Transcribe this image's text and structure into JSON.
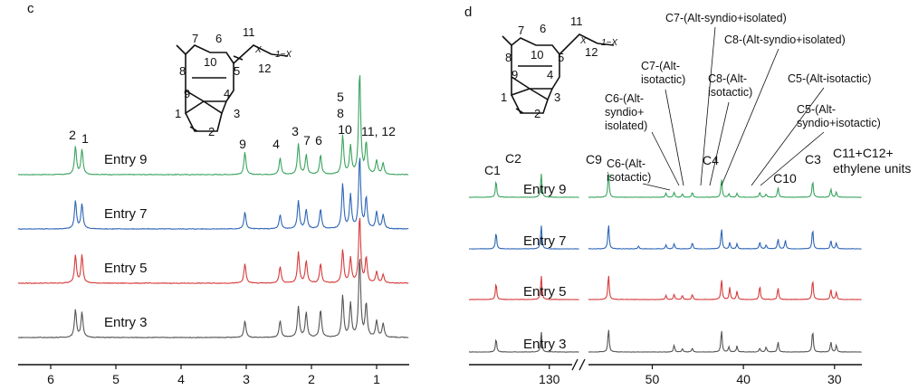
{
  "panel_c": {
    "letter": "c",
    "structure": {
      "labels": [
        "7",
        "6",
        "11",
        "1−X",
        "X",
        "12",
        "8",
        "10",
        "5",
        "9",
        "4",
        "1",
        "3",
        "2"
      ]
    },
    "peak_labels": [
      {
        "text": "2",
        "x": 5.62
      },
      {
        "text": "1",
        "x": 5.52
      },
      {
        "text": "9",
        "x": 3.02
      },
      {
        "text": "4",
        "x": 2.48
      },
      {
        "text": "3",
        "x": 2.2
      },
      {
        "text": "7",
        "x": 2.08
      },
      {
        "text": "6",
        "x": 1.86
      },
      {
        "text": "5",
        "x": 1.52
      },
      {
        "text": "8",
        "x": 1.52
      },
      {
        "text": "10",
        "x": 1.52
      },
      {
        "text": "11, 12",
        "x": 1.0
      }
    ],
    "axis": {
      "ticks": [
        "6",
        "5",
        "4",
        "3",
        "2",
        "1"
      ],
      "tick_values": [
        6,
        5,
        4,
        3,
        2,
        1
      ],
      "xlim": [
        6.5,
        0.5
      ]
    }
  },
  "panel_d": {
    "letter": "d",
    "structure": {
      "labels": [
        "7",
        "6",
        "11",
        "1−X",
        "X",
        "12",
        "8",
        "10",
        "5",
        "9",
        "4",
        "1",
        "3",
        "2"
      ]
    },
    "peak_labels": [
      {
        "text": "C1",
        "x": 135.3
      },
      {
        "text": "C2",
        "x": 130.8
      },
      {
        "text": "C9",
        "x": 54.8
      },
      {
        "text": "C4",
        "x": 42.4
      },
      {
        "text": "C10",
        "x": 37.0
      },
      {
        "text": "C3",
        "x": 32.4
      },
      {
        "text": "C11+C12+",
        "x": 29.6
      },
      {
        "text": "ethylene units",
        "x": 29.6
      }
    ],
    "annotations": [
      {
        "lines": [
          "C7-(Alt-syndio+isolated)"
        ]
      },
      {
        "lines": [
          "C8-(Alt-syndio+isolated)"
        ]
      },
      {
        "lines": [
          "C7-(Alt-",
          "isotactic)"
        ]
      },
      {
        "lines": [
          "C8-(Alt-",
          "isotactic)"
        ]
      },
      {
        "lines": [
          "C5-(Alt-isotactic)"
        ]
      },
      {
        "lines": [
          "C6-(Alt-",
          "syndio+",
          "isolated)"
        ]
      },
      {
        "lines": [
          "C5-(Alt-",
          "syndio+isotactic)"
        ]
      },
      {
        "lines": [
          "C6-(Alt-",
          "isotactic)"
        ]
      }
    ],
    "axis": {
      "ticks": [
        "130",
        "50",
        "40",
        "30"
      ],
      "tick_values": [
        130,
        50,
        40,
        30
      ],
      "xlim_left": [
        138,
        127
      ],
      "xlim_right": [
        57,
        27
      ]
    }
  },
  "chart_data": [
    {
      "type": "line",
      "panel": "c",
      "xlabel": "",
      "ylabel": "",
      "x_reversed": true,
      "xlim": [
        6.5,
        0.5
      ],
      "series": [
        {
          "name": "Entry 9",
          "color": "#3aa45f",
          "peaks": [
            [
              5.62,
              0.5
            ],
            [
              5.52,
              0.45
            ],
            [
              3.02,
              0.4
            ],
            [
              2.48,
              0.3
            ],
            [
              2.2,
              0.55
            ],
            [
              2.08,
              0.35
            ],
            [
              1.86,
              0.35
            ],
            [
              1.52,
              0.7
            ],
            [
              1.4,
              0.5
            ],
            [
              1.26,
              1.85
            ],
            [
              1.16,
              0.55
            ],
            [
              1.0,
              0.25
            ],
            [
              0.9,
              0.2
            ]
          ]
        },
        {
          "name": "Entry 7",
          "color": "#2e66b6",
          "peaks": [
            [
              5.62,
              0.5
            ],
            [
              5.52,
              0.45
            ],
            [
              3.02,
              0.3
            ],
            [
              2.48,
              0.25
            ],
            [
              2.2,
              0.5
            ],
            [
              2.08,
              0.35
            ],
            [
              1.86,
              0.35
            ],
            [
              1.52,
              0.8
            ],
            [
              1.4,
              0.6
            ],
            [
              1.26,
              1.3
            ],
            [
              1.16,
              0.55
            ],
            [
              1.0,
              0.3
            ],
            [
              0.9,
              0.25
            ]
          ]
        },
        {
          "name": "Entry 5",
          "color": "#d63b3b",
          "peaks": [
            [
              5.62,
              0.5
            ],
            [
              5.52,
              0.5
            ],
            [
              3.02,
              0.35
            ],
            [
              2.48,
              0.3
            ],
            [
              2.2,
              0.55
            ],
            [
              2.08,
              0.4
            ],
            [
              1.86,
              0.35
            ],
            [
              1.52,
              0.6
            ],
            [
              1.4,
              0.45
            ],
            [
              1.26,
              1.2
            ],
            [
              1.16,
              0.45
            ],
            [
              1.0,
              0.2
            ],
            [
              0.9,
              0.15
            ]
          ]
        },
        {
          "name": "Entry 3",
          "color": "#555555",
          "peaks": [
            [
              5.62,
              0.5
            ],
            [
              5.52,
              0.45
            ],
            [
              3.02,
              0.3
            ],
            [
              2.48,
              0.3
            ],
            [
              2.2,
              0.55
            ],
            [
              2.08,
              0.45
            ],
            [
              1.86,
              0.5
            ],
            [
              1.52,
              0.75
            ],
            [
              1.4,
              0.6
            ],
            [
              1.26,
              1.45
            ],
            [
              1.16,
              0.6
            ],
            [
              1.0,
              0.3
            ],
            [
              0.9,
              0.25
            ]
          ]
        }
      ]
    },
    {
      "type": "line",
      "panel": "d",
      "xlabel": "",
      "ylabel": "",
      "x_reversed": true,
      "axis_break": [
        127,
        57
      ],
      "series": [
        {
          "name": "Entry 9",
          "color": "#3aa45f",
          "peaks": [
            [
              135.3,
              0.5
            ],
            [
              130.8,
              0.7
            ],
            [
              54.8,
              0.75
            ],
            [
              48.5,
              0.12
            ],
            [
              47.6,
              0.15
            ],
            [
              46.7,
              0.1
            ],
            [
              45.6,
              0.15
            ],
            [
              42.4,
              0.55
            ],
            [
              41.6,
              0.1
            ],
            [
              40.7,
              0.12
            ],
            [
              38.2,
              0.15
            ],
            [
              37.5,
              0.1
            ],
            [
              36.2,
              0.3
            ],
            [
              32.4,
              0.5
            ],
            [
              30.4,
              0.25
            ],
            [
              29.8,
              0.15
            ]
          ]
        },
        {
          "name": "Entry 7",
          "color": "#2e66b6",
          "peaks": [
            [
              135.3,
              0.5
            ],
            [
              130.8,
              0.7
            ],
            [
              54.8,
              0.75
            ],
            [
              51.5,
              0.08
            ],
            [
              48.5,
              0.12
            ],
            [
              47.6,
              0.15
            ],
            [
              45.6,
              0.18
            ],
            [
              42.4,
              0.6
            ],
            [
              41.5,
              0.18
            ],
            [
              40.7,
              0.15
            ],
            [
              38.2,
              0.2
            ],
            [
              37.5,
              0.12
            ],
            [
              36.2,
              0.3
            ],
            [
              35.4,
              0.25
            ],
            [
              32.4,
              0.6
            ],
            [
              30.4,
              0.25
            ],
            [
              29.8,
              0.18
            ]
          ]
        },
        {
          "name": "Entry 5",
          "color": "#d63b3b",
          "peaks": [
            [
              135.3,
              0.5
            ],
            [
              130.8,
              0.7
            ],
            [
              54.8,
              0.75
            ],
            [
              48.5,
              0.12
            ],
            [
              47.6,
              0.15
            ],
            [
              46.7,
              0.12
            ],
            [
              45.6,
              0.15
            ],
            [
              42.4,
              0.6
            ],
            [
              41.5,
              0.35
            ],
            [
              40.7,
              0.25
            ],
            [
              38.2,
              0.4
            ],
            [
              36.2,
              0.35
            ],
            [
              32.4,
              0.6
            ],
            [
              30.4,
              0.3
            ],
            [
              29.8,
              0.22
            ]
          ]
        },
        {
          "name": "Entry 3",
          "color": "#555555",
          "peaks": [
            [
              135.3,
              0.4
            ],
            [
              130.8,
              0.6
            ],
            [
              54.8,
              0.7
            ],
            [
              47.6,
              0.2
            ],
            [
              46.7,
              0.1
            ],
            [
              45.6,
              0.12
            ],
            [
              42.4,
              0.65
            ],
            [
              41.6,
              0.15
            ],
            [
              40.7,
              0.18
            ],
            [
              38.2,
              0.12
            ],
            [
              37.5,
              0.15
            ],
            [
              36.2,
              0.3
            ],
            [
              32.4,
              0.65
            ],
            [
              30.4,
              0.3
            ],
            [
              29.8,
              0.2
            ]
          ]
        }
      ]
    }
  ]
}
